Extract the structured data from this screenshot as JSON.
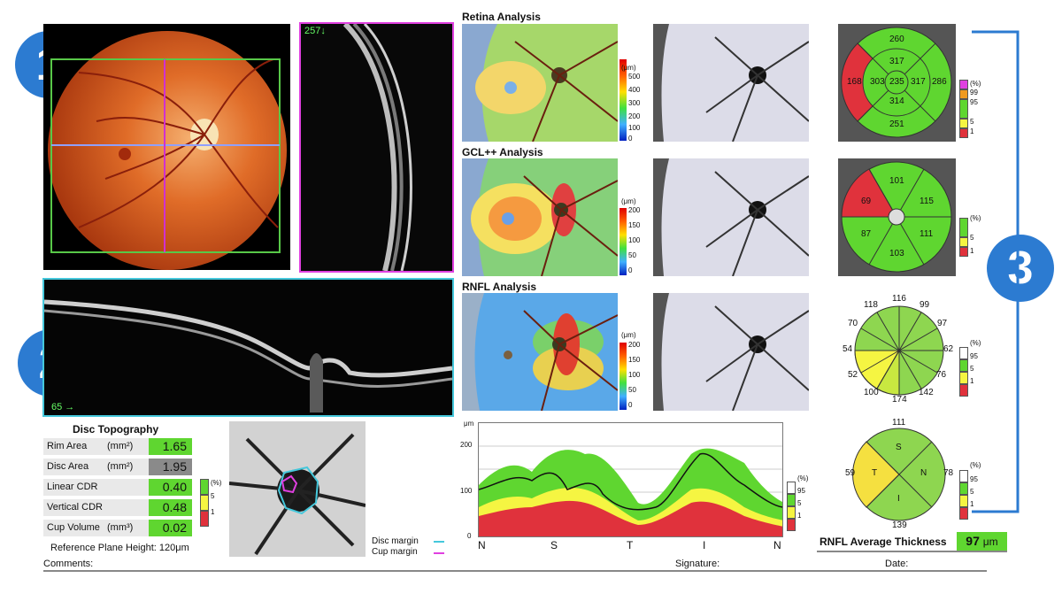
{
  "badges": [
    "1",
    "2",
    "3"
  ],
  "fundus": {
    "color": "#d4541c"
  },
  "bscan_vertical": {
    "label": "257↓"
  },
  "bscan_horizontal": {
    "label": "65 →"
  },
  "sections": {
    "retina": "Retina Analysis",
    "gcl": "GCL++ Analysis",
    "rnfl": "RNFL Analysis"
  },
  "unit_um": "(μm)",
  "colorbars": {
    "retina": [
      "500",
      "400",
      "300",
      "200",
      "100",
      "0"
    ],
    "gcl": [
      "200",
      "150",
      "100",
      "50",
      "0"
    ],
    "rnfl": [
      "200",
      "150",
      "100",
      "50",
      "0"
    ]
  },
  "etdrs_retina": {
    "superior": "260",
    "inner_superior": "317",
    "temporal_outer": "168",
    "inner_temporal": "303",
    "center": "235",
    "inner_nasal": "317",
    "outer_nasal": "286",
    "inner_inferior": "314",
    "inferior": "251",
    "scale": [
      "99",
      "95",
      "5",
      "1"
    ],
    "scale_unit": "(%)"
  },
  "etdrs_gcl": {
    "superior": "101",
    "temporal": "69",
    "nasal": "115",
    "inf_temporal": "87",
    "inf_nasal": "111",
    "inferior": "103",
    "scale": [
      "5",
      "1"
    ],
    "scale_unit": "(%)"
  },
  "clock": {
    "values": [
      "116",
      "99",
      "97",
      "62",
      "76",
      "142",
      "174",
      "100",
      "52",
      "54",
      "70",
      "118"
    ],
    "scale": [
      "95",
      "5",
      "1"
    ],
    "scale_unit": "(%)"
  },
  "quadrant": {
    "superior": "111",
    "nasal": "78",
    "inferior": "139",
    "temporal": "59",
    "labels": {
      "s": "S",
      "n": "N",
      "i": "I",
      "t": "T"
    },
    "scale": [
      "95",
      "5",
      "1"
    ],
    "scale_unit": "(%)"
  },
  "rnfl_avg": {
    "label": "RNFL Average Thickness",
    "value": "97",
    "unit": "μm"
  },
  "disc_topography": {
    "title": "Disc Topography",
    "rows": [
      {
        "label": "Rim Area",
        "unit": "(mm²)",
        "value": "1.65"
      },
      {
        "label": "Disc Area",
        "unit": "(mm²)",
        "value": "1.95"
      },
      {
        "label": "Linear CDR",
        "unit": "",
        "value": "0.40"
      },
      {
        "label": "Vertical CDR",
        "unit": "",
        "value": "0.48"
      },
      {
        "label": "Cup Volume",
        "unit": "(mm³)",
        "value": "0.02"
      }
    ],
    "reference": "Reference Plane Height:  120μm",
    "scale": [
      "5",
      "1"
    ],
    "scale_unit": "(%)"
  },
  "disc_legend": {
    "disc": "Disc margin",
    "cup": "Cup margin"
  },
  "tsnit": {
    "unit": "μm",
    "ticks": [
      "200",
      "100",
      "0"
    ],
    "xlabels": [
      "N",
      "S",
      "T",
      "I",
      "N"
    ],
    "scale": [
      "95",
      "5",
      "1"
    ],
    "scale_unit": "(%)"
  },
  "footer": {
    "comments": "Comments:",
    "signature": "Signature:",
    "date": "Date:"
  },
  "colors": {
    "green": "#5fd630",
    "yellow": "#f5f542",
    "red": "#e0323c",
    "white": "#ffffff",
    "blue": "#2c7bd1",
    "magenta": "#e040e0",
    "cyan": "#45c8dc"
  }
}
